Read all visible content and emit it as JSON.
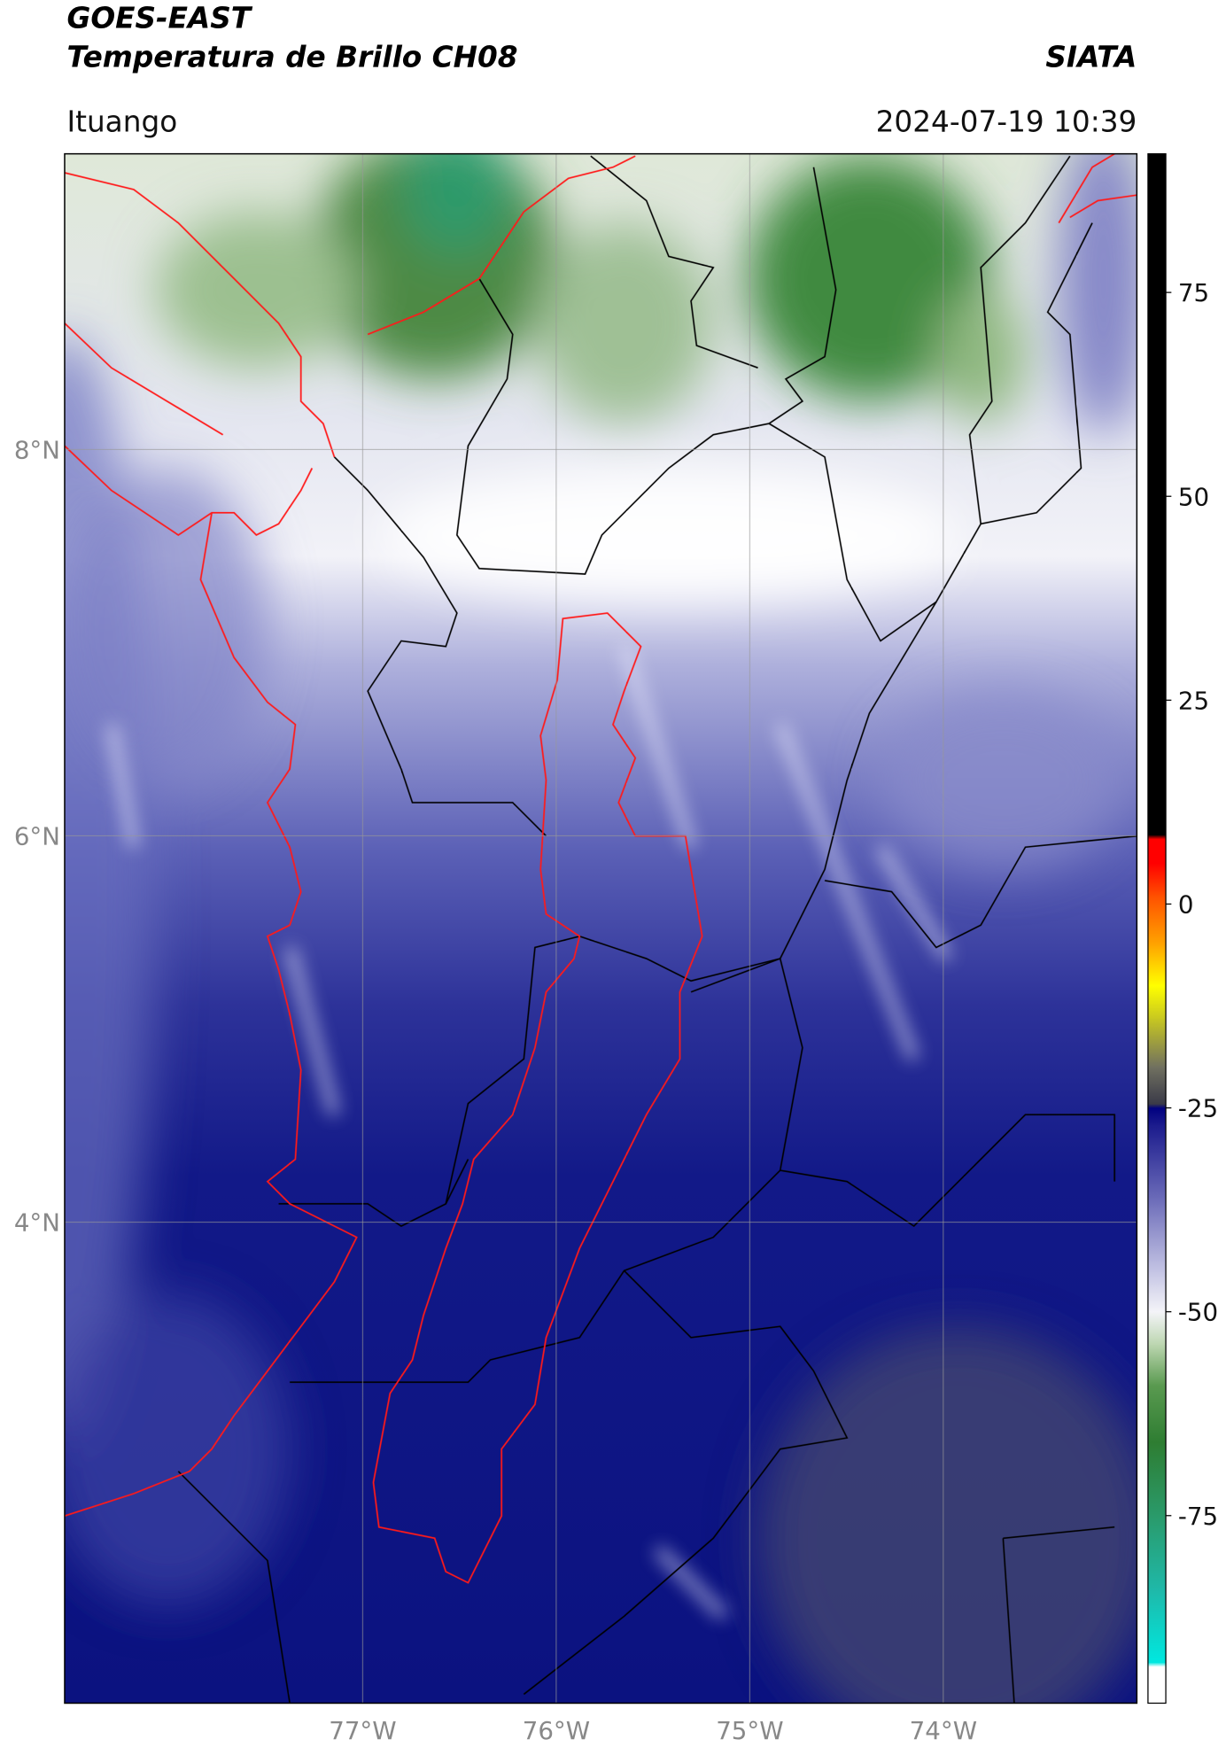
{
  "chart_data": {
    "type": "map",
    "title": "GOES-EAST",
    "subtitle": "Temperatura de Brillo CH08",
    "source": "SIATA",
    "location": "Ituango",
    "datetime": "2024-07-19 10:39",
    "xlim": [
      -78.54,
      -73.0
    ],
    "ylim": [
      1.51,
      9.53
    ],
    "xticks": [
      {
        "value": -77,
        "label": "77°W"
      },
      {
        "value": -76,
        "label": "76°W"
      },
      {
        "value": -75,
        "label": "75°W"
      },
      {
        "value": -74,
        "label": "74°W"
      }
    ],
    "yticks": [
      {
        "value": 8,
        "label": "8°N"
      },
      {
        "value": 6,
        "label": "6°N"
      },
      {
        "value": 4,
        "label": "4°N"
      }
    ],
    "grid": true,
    "colorbar": {
      "lim": [
        -98,
        92
      ],
      "ticks": [
        75,
        50,
        25,
        0,
        -25,
        -50,
        -75
      ],
      "stops": [
        {
          "value": -98,
          "color": "#ffffff"
        },
        {
          "value": -93.5,
          "color": "#ffffff"
        },
        {
          "value": -93,
          "color": "#00e8e0"
        },
        {
          "value": -84,
          "color": "#1fb8a8"
        },
        {
          "value": -75,
          "color": "#2a9a6a"
        },
        {
          "value": -66,
          "color": "#2e7d32"
        },
        {
          "value": -59,
          "color": "#5a9a50"
        },
        {
          "value": -54,
          "color": "#bcd6b0"
        },
        {
          "value": -50,
          "color": "#f4f4f8"
        },
        {
          "value": -45,
          "color": "#c4c4e4"
        },
        {
          "value": -36,
          "color": "#6a6ab8"
        },
        {
          "value": -27,
          "color": "#1a1a8c"
        },
        {
          "value": -25,
          "color": "#000080"
        },
        {
          "value": -24.5,
          "color": "#3a3a48"
        },
        {
          "value": -20,
          "color": "#707060"
        },
        {
          "value": -14,
          "color": "#c8c820"
        },
        {
          "value": -10,
          "color": "#ffff00"
        },
        {
          "value": -5,
          "color": "#ffa500"
        },
        {
          "value": 1,
          "color": "#ff5000"
        },
        {
          "value": 5,
          "color": "#ff0000"
        },
        {
          "value": 8,
          "color": "#ff0000"
        },
        {
          "value": 8.5,
          "color": "#000000"
        },
        {
          "value": 92,
          "color": "#000000"
        }
      ]
    }
  }
}
